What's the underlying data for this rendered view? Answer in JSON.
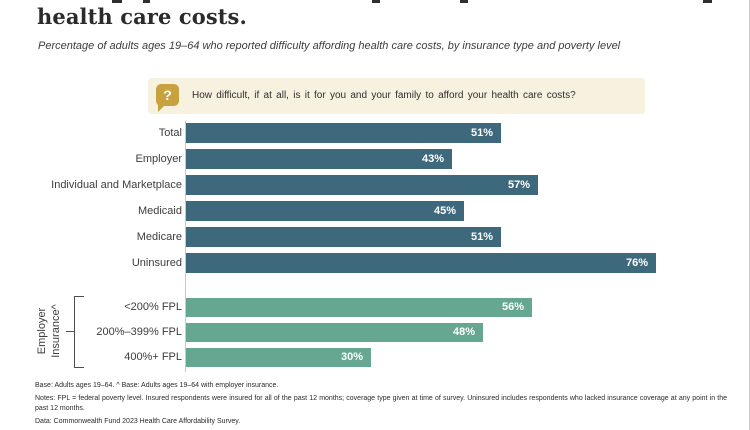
{
  "header": {
    "title": "health care costs.",
    "subtitle": "Percentage of adults ages 19–64 who reported difficulty affording health care costs, by insurance type and poverty level"
  },
  "question_box": {
    "icon": "question-mark-bubble-icon",
    "icon_glyph": "?",
    "text": "How difficult, if at all, is it for you and your family to afford your health care costs?"
  },
  "chart_data": {
    "type": "bar",
    "orientation": "horizontal",
    "value_suffix": "%",
    "xlim": [
      0,
      80
    ],
    "grid": false,
    "legend": "none",
    "groups": [
      {
        "id": "by-insurance-type",
        "bar_color": "#3e697c",
        "categories": [
          "Total",
          "Employer",
          "Individual and Marketplace",
          "Medicaid",
          "Medicare",
          "Uninsured"
        ],
        "values": [
          51,
          43,
          57,
          45,
          51,
          76
        ]
      },
      {
        "id": "employer-insurance-by-poverty-level",
        "group_label": "Employer Insurance^",
        "bar_color": "#65a791",
        "categories": [
          "<200% FPL",
          "200%–399% FPL",
          "400%+ FPL"
        ],
        "values": [
          56,
          48,
          30
        ]
      }
    ]
  },
  "footnotes": {
    "base": "Base: Adults ages 19–64. ^ Base: Adults ages 19–64 with employer insurance.",
    "notes": "Notes: FPL = federal poverty level. Insured respondents were insured for all of the past 12 months; coverage type given at time of survey. Uninsured includes respondents who lacked insurance coverage at any point in the past 12 months.",
    "data_source": "Data: Commonwealth Fund 2023 Health Care Affordability Survey."
  },
  "colors": {
    "dark_teal": "#3e697c",
    "green": "#65a791",
    "callout_bg": "#f7f1e0",
    "icon_gold": "#c8a23e",
    "axis_line": "#c9c9c9",
    "page_border": "#c9c9c9"
  }
}
